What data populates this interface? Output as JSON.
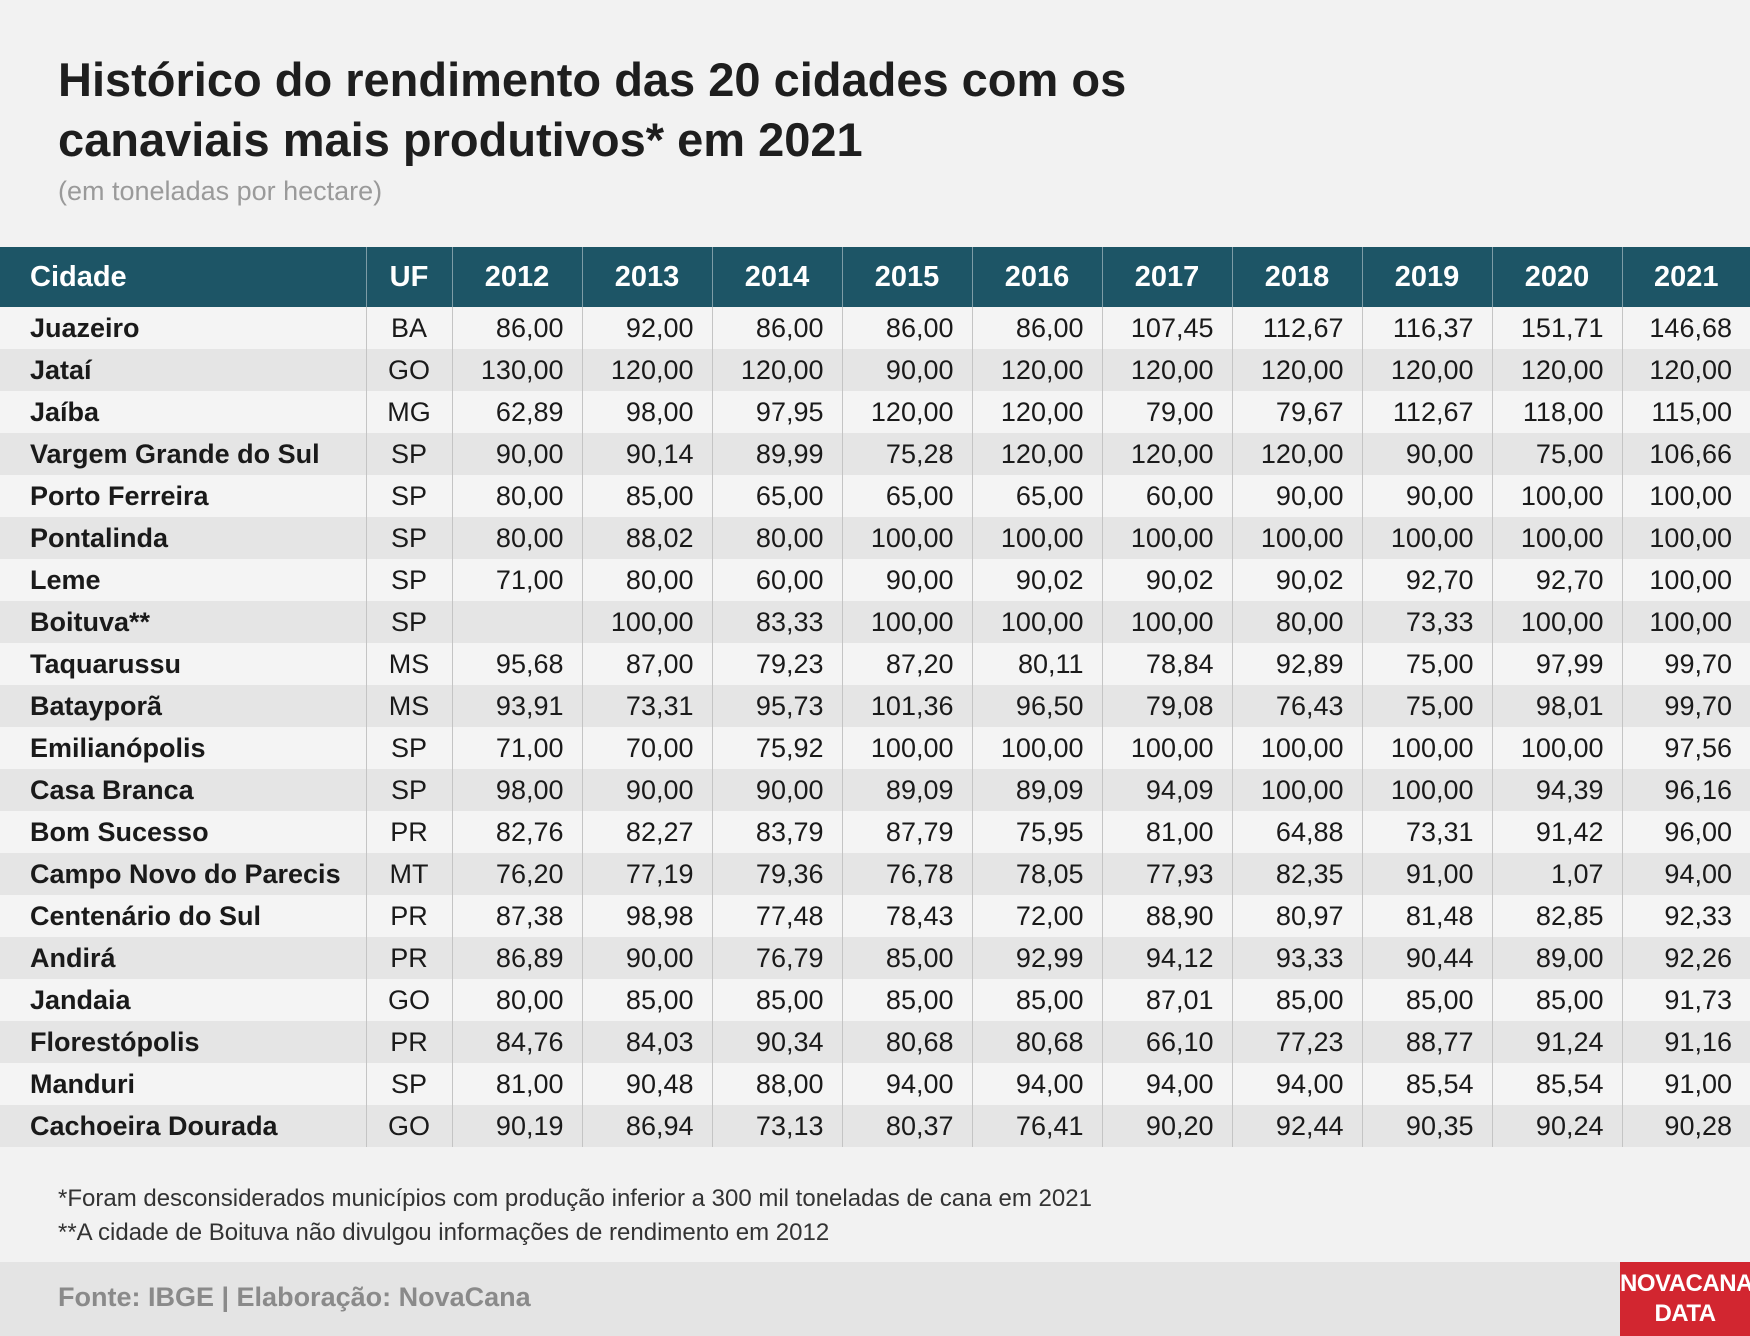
{
  "title": "Histórico do rendimento das 20 cidades com os canaviais mais produtivos* em 2021",
  "subtitle": "(em toneladas por hectare)",
  "chart_data": {
    "type": "table",
    "columns": [
      "Cidade",
      "UF",
      "2012",
      "2013",
      "2014",
      "2015",
      "2016",
      "2017",
      "2018",
      "2019",
      "2020",
      "2021"
    ],
    "rows": [
      [
        "Juazeiro",
        "BA",
        "86,00",
        "92,00",
        "86,00",
        "86,00",
        "86,00",
        "107,45",
        "112,67",
        "116,37",
        "151,71",
        "146,68"
      ],
      [
        "Jataí",
        "GO",
        "130,00",
        "120,00",
        "120,00",
        "90,00",
        "120,00",
        "120,00",
        "120,00",
        "120,00",
        "120,00",
        "120,00"
      ],
      [
        "Jaíba",
        "MG",
        "62,89",
        "98,00",
        "97,95",
        "120,00",
        "120,00",
        "79,00",
        "79,67",
        "112,67",
        "118,00",
        "115,00"
      ],
      [
        "Vargem Grande do Sul",
        "SP",
        "90,00",
        "90,14",
        "89,99",
        "75,28",
        "120,00",
        "120,00",
        "120,00",
        "90,00",
        "75,00",
        "106,66"
      ],
      [
        "Porto Ferreira",
        "SP",
        "80,00",
        "85,00",
        "65,00",
        "65,00",
        "65,00",
        "60,00",
        "90,00",
        "90,00",
        "100,00",
        "100,00"
      ],
      [
        "Pontalinda",
        "SP",
        "80,00",
        "88,02",
        "80,00",
        "100,00",
        "100,00",
        "100,00",
        "100,00",
        "100,00",
        "100,00",
        "100,00"
      ],
      [
        "Leme",
        "SP",
        "71,00",
        "80,00",
        "60,00",
        "90,00",
        "90,02",
        "90,02",
        "90,02",
        "92,70",
        "92,70",
        "100,00"
      ],
      [
        "Boituva**",
        "SP",
        "",
        "100,00",
        "83,33",
        "100,00",
        "100,00",
        "100,00",
        "80,00",
        "73,33",
        "100,00",
        "100,00"
      ],
      [
        "Taquarussu",
        "MS",
        "95,68",
        "87,00",
        "79,23",
        "87,20",
        "80,11",
        "78,84",
        "92,89",
        "75,00",
        "97,99",
        "99,70"
      ],
      [
        "Batayporã",
        "MS",
        "93,91",
        "73,31",
        "95,73",
        "101,36",
        "96,50",
        "79,08",
        "76,43",
        "75,00",
        "98,01",
        "99,70"
      ],
      [
        "Emilianópolis",
        "SP",
        "71,00",
        "70,00",
        "75,92",
        "100,00",
        "100,00",
        "100,00",
        "100,00",
        "100,00",
        "100,00",
        "97,56"
      ],
      [
        "Casa Branca",
        "SP",
        "98,00",
        "90,00",
        "90,00",
        "89,09",
        "89,09",
        "94,09",
        "100,00",
        "100,00",
        "94,39",
        "96,16"
      ],
      [
        "Bom Sucesso",
        "PR",
        "82,76",
        "82,27",
        "83,79",
        "87,79",
        "75,95",
        "81,00",
        "64,88",
        "73,31",
        "91,42",
        "96,00"
      ],
      [
        "Campo Novo do Parecis",
        "MT",
        "76,20",
        "77,19",
        "79,36",
        "76,78",
        "78,05",
        "77,93",
        "82,35",
        "91,00",
        "1,07",
        "94,00"
      ],
      [
        "Centenário do Sul",
        "PR",
        "87,38",
        "98,98",
        "77,48",
        "78,43",
        "72,00",
        "88,90",
        "80,97",
        "81,48",
        "82,85",
        "92,33"
      ],
      [
        "Andirá",
        "PR",
        "86,89",
        "90,00",
        "76,79",
        "85,00",
        "92,99",
        "94,12",
        "93,33",
        "90,44",
        "89,00",
        "92,26"
      ],
      [
        "Jandaia",
        "GO",
        "80,00",
        "85,00",
        "85,00",
        "85,00",
        "85,00",
        "87,01",
        "85,00",
        "85,00",
        "85,00",
        "91,73"
      ],
      [
        "Florestópolis",
        "PR",
        "84,76",
        "84,03",
        "90,34",
        "80,68",
        "80,68",
        "66,10",
        "77,23",
        "88,77",
        "91,24",
        "91,16"
      ],
      [
        "Manduri",
        "SP",
        "81,00",
        "90,48",
        "88,00",
        "94,00",
        "94,00",
        "94,00",
        "94,00",
        "85,54",
        "85,54",
        "91,00"
      ],
      [
        "Cachoeira Dourada",
        "GO",
        "90,19",
        "86,94",
        "73,13",
        "80,37",
        "76,41",
        "90,20",
        "92,44",
        "90,35",
        "90,24",
        "90,28"
      ]
    ]
  },
  "notes": [
    "*Foram desconsiderados municípios com produção inferior a 300 mil toneladas de cana em 2021",
    "**A cidade de Boituva não divulgou informações de rendimento em 2012"
  ],
  "footer": {
    "source": "Fonte: IBGE | Elaboração: NovaCana",
    "logo_line1": "NOVACANA",
    "logo_line2": "DATA"
  },
  "colors": {
    "header_bg": "#1d5566",
    "logo_bg": "#d22630"
  }
}
